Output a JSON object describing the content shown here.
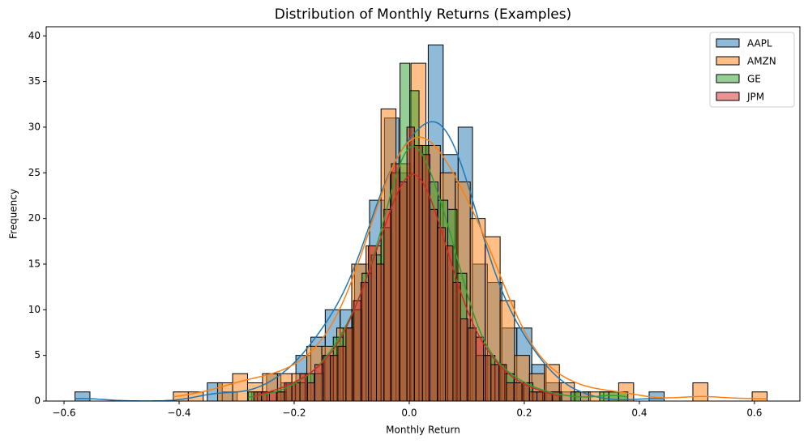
{
  "chart_data": {
    "type": "histogram",
    "title": "Distribution of Monthly Returns (Examples)",
    "x_label": "Monthly Return",
    "y_label": "Frequency",
    "xlim": [
      -0.631,
      0.679
    ],
    "ylim": [
      0,
      41
    ],
    "xticks": [
      {
        "value": -0.6,
        "label": "−0.6"
      },
      {
        "value": -0.4,
        "label": "−0.4"
      },
      {
        "value": -0.2,
        "label": "−0.2"
      },
      {
        "value": 0,
        "label": "0.0"
      },
      0.2,
      0.4,
      0.6
    ],
    "yticks": [
      0,
      5,
      10,
      15,
      20,
      25,
      30,
      35,
      40
    ],
    "legend": "upper right",
    "kde": true,
    "series": [
      {
        "name": "AAPL",
        "color": "#1f77b4",
        "bins": [
          -0.581,
          -0.555,
          -0.53,
          -0.504,
          -0.479,
          -0.453,
          -0.427,
          -0.402,
          -0.376,
          -0.351,
          -0.325,
          -0.299,
          -0.274,
          -0.248,
          -0.223,
          -0.197,
          -0.171,
          -0.146,
          -0.12,
          -0.095,
          -0.069,
          -0.043,
          -0.018,
          0.008,
          0.033,
          0.059,
          0.085,
          0.11,
          0.136,
          0.161,
          0.187,
          0.213,
          0.238,
          0.264,
          0.289,
          0.315,
          0.341,
          0.366,
          0.392,
          0.417,
          0.443
        ],
        "values": [
          1,
          0,
          0,
          0,
          0,
          0,
          0,
          0,
          0,
          2,
          1,
          0,
          1,
          3,
          2,
          5,
          7,
          10,
          10,
          15,
          22,
          31,
          25,
          28,
          39,
          27,
          30,
          15,
          13,
          8,
          8,
          4,
          2,
          1,
          1,
          0,
          0,
          0,
          0,
          1
        ]
      },
      {
        "name": "AMZN",
        "color": "#ff7f0e",
        "bins": [
          -0.41,
          -0.384,
          -0.358,
          -0.333,
          -0.307,
          -0.281,
          -0.255,
          -0.229,
          -0.204,
          -0.178,
          -0.152,
          -0.126,
          -0.1,
          -0.075,
          -0.049,
          -0.023,
          0.003,
          0.029,
          0.054,
          0.08,
          0.106,
          0.132,
          0.158,
          0.183,
          0.209,
          0.235,
          0.261,
          0.287,
          0.312,
          0.338,
          0.364,
          0.39,
          0.416,
          0.441,
          0.467,
          0.493,
          0.519,
          0.545,
          0.57,
          0.596,
          0.622
        ],
        "values": [
          1,
          1,
          0,
          2,
          3,
          2,
          3,
          3,
          3,
          6,
          6,
          8,
          15,
          17,
          32,
          26,
          37,
          28,
          25,
          24,
          20,
          18,
          11,
          5,
          3,
          4,
          2,
          1,
          1,
          1,
          2,
          0,
          0,
          0,
          0,
          2,
          0,
          0,
          0,
          1
        ]
      },
      {
        "name": "GE",
        "color": "#2ca02c",
        "bins": [
          -0.28,
          -0.264,
          -0.247,
          -0.231,
          -0.214,
          -0.198,
          -0.181,
          -0.165,
          -0.148,
          -0.132,
          -0.115,
          -0.099,
          -0.082,
          -0.066,
          -0.049,
          -0.033,
          -0.016,
          0.001,
          0.017,
          0.034,
          0.05,
          0.067,
          0.083,
          0.1,
          0.116,
          0.133,
          0.149,
          0.166,
          0.182,
          0.199,
          0.215,
          0.232,
          0.248,
          0.265,
          0.281,
          0.298,
          0.314,
          0.331,
          0.347,
          0.364,
          0.38
        ],
        "values": [
          1,
          1,
          0,
          1,
          2,
          2,
          3,
          3,
          5,
          7,
          8,
          10,
          14,
          16,
          19,
          25,
          37,
          34,
          28,
          24,
          22,
          21,
          14,
          8,
          5,
          5,
          4,
          3,
          2,
          2,
          1,
          1,
          1,
          0,
          1,
          0,
          0,
          1,
          1,
          1
        ]
      },
      {
        "name": "JPM",
        "color": "#d62728",
        "bins": [
          -0.27,
          -0.257,
          -0.243,
          -0.23,
          -0.217,
          -0.204,
          -0.19,
          -0.177,
          -0.164,
          -0.15,
          -0.137,
          -0.124,
          -0.11,
          -0.097,
          -0.084,
          -0.071,
          -0.057,
          -0.044,
          -0.031,
          -0.017,
          -0.004,
          0.009,
          0.023,
          0.036,
          0.049,
          0.063,
          0.076,
          0.089,
          0.102,
          0.116,
          0.129,
          0.142,
          0.156,
          0.169,
          0.182,
          0.196,
          0.209,
          0.222,
          0.235,
          0.249,
          0.262
        ],
        "values": [
          1,
          1,
          1,
          1,
          2,
          2,
          3,
          2,
          4,
          5,
          5,
          6,
          8,
          11,
          13,
          17,
          15,
          21,
          26,
          24,
          30,
          28,
          27,
          21,
          19,
          17,
          13,
          9,
          8,
          7,
          5,
          4,
          4,
          2,
          2,
          2,
          1,
          1,
          1,
          1
        ]
      }
    ]
  }
}
